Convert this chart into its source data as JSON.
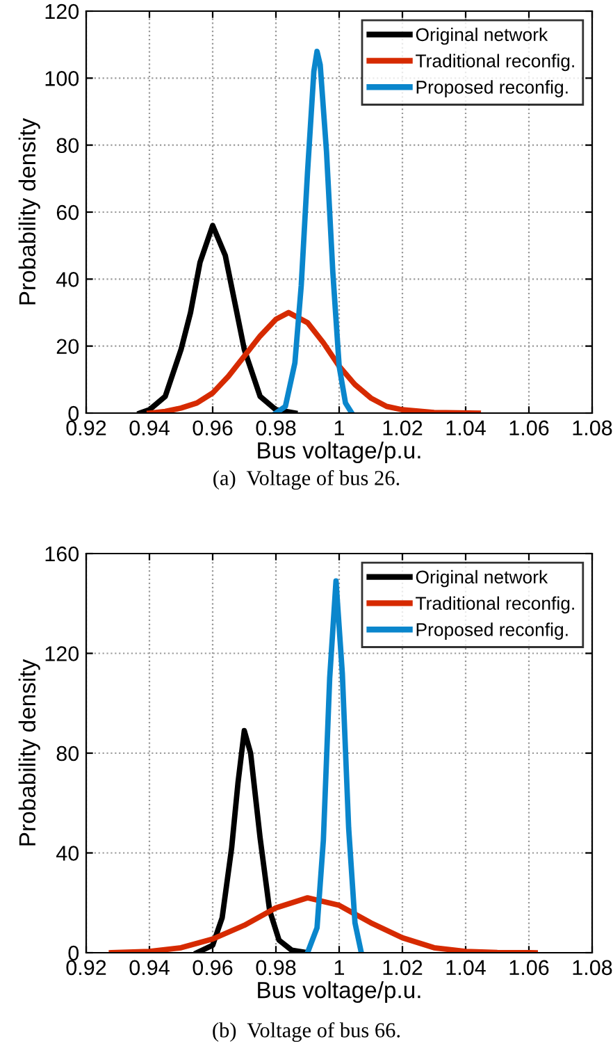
{
  "chart_data": [
    {
      "type": "line",
      "xlabel": "Bus voltage/p.u.",
      "ylabel": "Probability density",
      "annotations": [
        "(a)  Voltage of bus 26."
      ],
      "xlim": [
        0.92,
        1.08
      ],
      "xticks": [
        {
          "value": 0.92,
          "label": "0.92"
        },
        {
          "value": 0.94,
          "label": "0.94"
        },
        {
          "value": 0.96,
          "label": "0.96"
        },
        {
          "value": 0.98,
          "label": "0.98"
        },
        {
          "value": 1,
          "label": "1"
        },
        {
          "value": 1.02,
          "label": "1.02"
        },
        {
          "value": 1.04,
          "label": "1.04"
        },
        {
          "value": 1.06,
          "label": "1.06"
        },
        {
          "value": 1.08,
          "label": "1.08"
        }
      ],
      "ylim": [
        0,
        120
      ],
      "yticks": [
        0,
        20,
        40,
        60,
        80,
        100,
        120
      ],
      "grid": true,
      "legend": "top right",
      "line_style": "solid",
      "marker": "none",
      "series": [
        {
          "name": "Original network",
          "color": "#000000",
          "x": [
            0.937,
            0.94,
            0.945,
            0.95,
            0.953,
            0.956,
            0.96,
            0.964,
            0.967,
            0.97,
            0.975,
            0.98,
            0.986
          ],
          "values": [
            0,
            1,
            5,
            19,
            30,
            45,
            56,
            47,
            33,
            19,
            5,
            1,
            0
          ]
        },
        {
          "name": "Traditional reconfig.",
          "color": "#d62a00",
          "x": [
            0.94,
            0.945,
            0.95,
            0.955,
            0.96,
            0.965,
            0.97,
            0.975,
            0.98,
            0.984,
            0.99,
            0.995,
            1.0,
            1.005,
            1.01,
            1.015,
            1.02,
            1.03,
            1.044
          ],
          "values": [
            0,
            0.5,
            1.5,
            3,
            6,
            11,
            17,
            23,
            28,
            30,
            27,
            21,
            14,
            8.5,
            4.5,
            2,
            1,
            0.2,
            0
          ]
        },
        {
          "name": "Proposed reconfig.",
          "color": "#0a86cc",
          "x": [
            0.98,
            0.983,
            0.986,
            0.988,
            0.99,
            0.992,
            0.993,
            0.994,
            0.996,
            0.998,
            1.0,
            1.002,
            1.004
          ],
          "values": [
            0,
            2,
            15,
            38,
            72,
            102,
            108,
            104,
            78,
            42,
            14,
            3,
            0
          ]
        }
      ]
    },
    {
      "type": "line",
      "xlabel": "Bus voltage/p.u.",
      "ylabel": "Probability density",
      "annotations": [
        "(b)  Voltage of bus 66."
      ],
      "xlim": [
        0.92,
        1.08
      ],
      "xticks": [
        {
          "value": 0.92,
          "label": "0.92"
        },
        {
          "value": 0.94,
          "label": "0.94"
        },
        {
          "value": 0.96,
          "label": "0.96"
        },
        {
          "value": 0.98,
          "label": "0.98"
        },
        {
          "value": 1,
          "label": "1"
        },
        {
          "value": 1.02,
          "label": "1.02"
        },
        {
          "value": 1.04,
          "label": "1.04"
        },
        {
          "value": 1.06,
          "label": "1.06"
        },
        {
          "value": 1.08,
          "label": "1.08"
        }
      ],
      "ylim": [
        0,
        160
      ],
      "yticks": [
        0,
        40,
        80,
        120,
        160
      ],
      "grid": true,
      "legend": "top right",
      "line_style": "solid",
      "marker": "none",
      "series": [
        {
          "name": "Original network",
          "color": "#000000",
          "x": [
            0.955,
            0.96,
            0.963,
            0.966,
            0.968,
            0.97,
            0.972,
            0.975,
            0.978,
            0.981,
            0.985,
            0.99
          ],
          "values": [
            0,
            3,
            14,
            42,
            68,
            89,
            80,
            46,
            17,
            5,
            1,
            0
          ]
        },
        {
          "name": "Traditional reconfig.",
          "color": "#d62a00",
          "x": [
            0.928,
            0.94,
            0.95,
            0.96,
            0.97,
            0.98,
            0.99,
            1.0,
            1.01,
            1.02,
            1.03,
            1.04,
            1.05,
            1.062
          ],
          "values": [
            0,
            0.5,
            2,
            5.5,
            11,
            18,
            22,
            19,
            12,
            6,
            2,
            0.5,
            0.1,
            0
          ]
        },
        {
          "name": "Proposed reconfig.",
          "color": "#0a86cc",
          "x": [
            0.99,
            0.993,
            0.995,
            0.997,
            0.999,
            1.001,
            1.003,
            1.005,
            1.007
          ],
          "values": [
            0,
            10,
            45,
            110,
            149,
            112,
            50,
            12,
            0
          ]
        }
      ]
    }
  ]
}
